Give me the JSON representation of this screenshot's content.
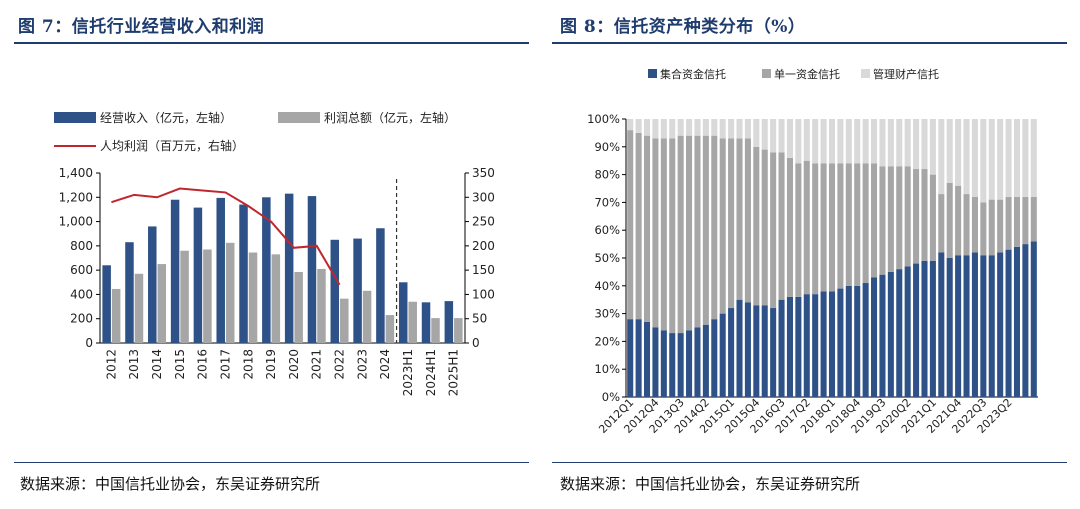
{
  "fig7": {
    "title": "图 7：信托行业经营收入和利润",
    "source": "数据来源：中国信托业协会，东吴证券研究所"
  },
  "fig8": {
    "title": "图 8：信托资产种类分布（%）",
    "source": "数据来源：中国信托业协会，东吴证券研究所"
  },
  "colors": {
    "navy": "#2e5287",
    "gray": "#a6a6a6",
    "red": "#c0262d",
    "lightgray": "#d9d9d9",
    "title": "#1f3c6e"
  },
  "chart_data": [
    {
      "type": "bar",
      "title": "信托行业经营收入和利润",
      "categories": [
        "2012",
        "2013",
        "2014",
        "2015",
        "2016",
        "2017",
        "2018",
        "2019",
        "2020",
        "2021",
        "2022",
        "2023",
        "2024",
        "2023H1",
        "2024H1",
        "2025H1"
      ],
      "series": [
        {
          "name": "经营收入（亿元，左轴）",
          "type": "bar",
          "axis": "left",
          "values": [
            640,
            830,
            960,
            1180,
            1115,
            1195,
            1140,
            1200,
            1230,
            1210,
            850,
            860,
            945,
            500,
            335,
            345
          ]
        },
        {
          "name": "利润总额（亿元，左轴）",
          "type": "bar",
          "axis": "left",
          "values": [
            445,
            570,
            650,
            760,
            770,
            825,
            745,
            730,
            585,
            610,
            365,
            430,
            230,
            340,
            205,
            205
          ]
        },
        {
          "name": "人均利润（百万元，右轴）",
          "type": "line",
          "axis": "right",
          "values": [
            290,
            305,
            300,
            318,
            314,
            310,
            282,
            250,
            196,
            200,
            120,
            null,
            null,
            null,
            null,
            null
          ]
        }
      ],
      "ylim_left": [
        0,
        1400
      ],
      "yticks_left": [
        "0",
        "200",
        "400",
        "600",
        "800",
        "1,000",
        "1,200",
        "1,400"
      ],
      "ylim_right": [
        0,
        350
      ],
      "yticks_right": [
        "0",
        "50",
        "100",
        "150",
        "200",
        "250",
        "300",
        "350"
      ],
      "legend": "top",
      "divider_after": "2024"
    },
    {
      "type": "bar",
      "title": "信托资产种类分布（%）",
      "stacked": true,
      "tick_labels": [
        "2012Q1",
        "2012Q4",
        "2013Q3",
        "2014Q2",
        "2015Q1",
        "2015Q4",
        "2016Q3",
        "2017Q2",
        "2018Q1",
        "2018Q4",
        "2019Q3",
        "2020Q2",
        "2021Q1",
        "2021Q4",
        "2022Q3",
        "2023Q2"
      ],
      "tick_every": 3,
      "series": [
        {
          "name": "集合资金信托",
          "values": [
            28,
            28,
            27,
            25,
            24,
            23,
            23,
            24,
            25,
            26,
            28,
            30,
            32,
            35,
            34,
            33,
            33,
            32,
            35,
            36,
            36,
            37,
            37,
            38,
            38,
            39,
            40,
            40,
            41,
            43,
            44,
            45,
            46,
            47,
            48,
            49,
            49,
            52,
            50,
            51,
            51,
            52,
            51,
            51,
            52,
            53,
            54,
            55,
            56
          ]
        },
        {
          "name": "单一资金信托",
          "values": [
            68,
            67,
            67,
            68,
            69,
            70,
            71,
            70,
            69,
            68,
            66,
            63,
            61,
            58,
            59,
            57,
            56,
            56,
            53,
            50,
            48,
            48,
            47,
            46,
            46,
            45,
            44,
            44,
            43,
            41,
            39,
            38,
            37,
            36,
            34,
            33,
            31,
            21,
            27,
            25,
            22,
            20,
            19,
            20,
            19,
            19,
            18,
            17,
            16
          ]
        },
        {
          "name": "管理财产信托",
          "values": [
            4,
            5,
            6,
            7,
            7,
            7,
            6,
            6,
            6,
            6,
            6,
            7,
            7,
            7,
            7,
            10,
            11,
            12,
            12,
            14,
            16,
            15,
            16,
            16,
            16,
            16,
            16,
            16,
            16,
            16,
            17,
            17,
            17,
            17,
            18,
            18,
            20,
            27,
            23,
            24,
            27,
            28,
            30,
            29,
            29,
            28,
            28,
            28,
            28
          ]
        }
      ],
      "ylim": [
        0,
        100
      ],
      "yticks": [
        "0%",
        "10%",
        "20%",
        "30%",
        "40%",
        "50%",
        "60%",
        "70%",
        "80%",
        "90%",
        "100%"
      ],
      "legend": "top"
    }
  ]
}
